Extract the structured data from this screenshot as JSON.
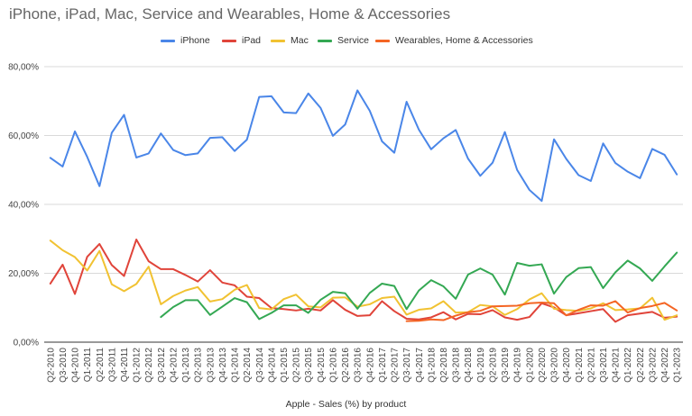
{
  "chart_data": {
    "type": "line",
    "title": "iPhone, iPad, Mac, Service and Wearables, Home & Accessories",
    "xlabel": "Apple - Sales (%) by product",
    "ylabel": "",
    "ylim": [
      0,
      80
    ],
    "yticks": [
      "0,00%",
      "20,00%",
      "40,00%",
      "60,00%",
      "80,00%"
    ],
    "grid": "horizontal",
    "legend_position": "top",
    "categories": [
      "Q2-2010",
      "Q3-2010",
      "Q4-2010",
      "Q1-2011",
      "Q2-2011",
      "Q3-2011",
      "Q4-2011",
      "Q1-2012",
      "Q2-2012",
      "Q3-2012",
      "Q4-2012",
      "Q1-2013",
      "Q2-2013",
      "Q3-2013",
      "Q4-2013",
      "Q1-2014",
      "Q2-2014",
      "Q3-2014",
      "Q4-2014",
      "Q1-2015",
      "Q2-2015",
      "Q3-2015",
      "Q4-2015",
      "Q1-2016",
      "Q2-2016",
      "Q3-2016",
      "Q4-2016",
      "Q1-2017",
      "Q2-2017",
      "Q3-2017",
      "Q4-2017",
      "Q1-2018",
      "Q2-2018",
      "Q3-2018",
      "Q4-2018",
      "Q1-2019",
      "Q2-2019",
      "Q3-2019",
      "Q4-2019",
      "Q1-2020",
      "Q2-2020",
      "Q3-2020",
      "Q4-2020",
      "Q1-2021",
      "Q2-2021",
      "Q3-2021",
      "Q4-2021",
      "Q1-2022",
      "Q2-2022",
      "Q3-2022",
      "Q4-2022",
      "Q1-2023"
    ],
    "series": [
      {
        "name": "iPhone",
        "color": "#4a86e8",
        "values": [
          53.5,
          51,
          61.2,
          53.8,
          45.3,
          60.8,
          66,
          53.6,
          54.8,
          60.6,
          55.8,
          54.3,
          54.8,
          59.3,
          59.5,
          55.5,
          58.8,
          71.2,
          71.4,
          66.7,
          66.5,
          72.2,
          68,
          59.9,
          63.2,
          73.1,
          67.2,
          58.3,
          55,
          69.8,
          61.7,
          56,
          59.2,
          61.6,
          53.3,
          48.3,
          52.1,
          61,
          50,
          44.2,
          41,
          58.9,
          53.2,
          48.5,
          46.8,
          57.7,
          52,
          49.5,
          47.6,
          56.1,
          54.4,
          48.7
        ]
      },
      {
        "name": "iPad",
        "color": "#e0443a",
        "values": [
          17,
          22.5,
          14,
          24.8,
          28.5,
          22.4,
          19.2,
          29.8,
          23.5,
          21.2,
          21.2,
          19.5,
          17.6,
          20.9,
          17.3,
          16.5,
          13.2,
          12.8,
          9.9,
          9.6,
          9.2,
          9.7,
          9.2,
          12.2,
          9.4,
          7.6,
          7.8,
          11.9,
          9,
          6.8,
          6.6,
          7.2,
          8.7,
          6.6,
          8.2,
          8.1,
          9.3,
          7.2,
          6.5,
          7.3,
          11.3,
          10.1,
          7.8,
          8.4,
          9,
          9.6,
          5.9,
          7.8,
          8.3,
          8.8,
          7.1,
          7.4
        ]
      },
      {
        "name": "Mac",
        "color": "#f1c232",
        "values": [
          29.5,
          26.7,
          24.7,
          20.8,
          26.5,
          16.8,
          14.8,
          16.9,
          21.9,
          11,
          13.4,
          15,
          16,
          11.8,
          12.5,
          15.2,
          16.6,
          9.9,
          9.5,
          12.5,
          13.8,
          10.4,
          10.1,
          12.9,
          13,
          10.3,
          11,
          12.8,
          13.2,
          8,
          9.4,
          9.8,
          11.9,
          8.6,
          8.7,
          10.8,
          10.4,
          7.9,
          9.6,
          12.4,
          14.2,
          9.7,
          9.3,
          9.1,
          9.8,
          11.3,
          9.3,
          9.5,
          9.8,
          12.9,
          6.5,
          7.8
        ]
      },
      {
        "name": "Service",
        "color": "#34a853",
        "values": [
          null,
          null,
          null,
          null,
          null,
          null,
          null,
          null,
          null,
          7.3,
          10.2,
          12.2,
          12.2,
          7.9,
          10.3,
          12.8,
          11.6,
          6.7,
          8.5,
          10.7,
          10.7,
          8.5,
          12.3,
          14.6,
          14.2,
          9.7,
          14.3,
          17,
          16.3,
          9.6,
          15,
          18,
          16.2,
          12.6,
          19.6,
          21.4,
          19.6,
          13.8,
          23,
          22.2,
          22.6,
          14.1,
          18.9,
          21.5,
          21.8,
          15.7,
          20.3,
          23.7,
          21.4,
          17.8,
          22,
          26
        ]
      },
      {
        "name": "Wearables, Home & Accessories",
        "color": "#f46524",
        "values": [
          null,
          null,
          null,
          null,
          null,
          null,
          null,
          null,
          null,
          null,
          null,
          null,
          null,
          null,
          null,
          null,
          null,
          null,
          null,
          null,
          null,
          null,
          null,
          null,
          null,
          null,
          null,
          null,
          null,
          6.1,
          6.2,
          6.6,
          6.4,
          7.7,
          8.7,
          9.1,
          10.4,
          10.5,
          10.6,
          11.3,
          11.5,
          11.3,
          7.8,
          9.4,
          10.7,
          10.6,
          11.9,
          8.6,
          9.9,
          10.5,
          11.4,
          9.2
        ]
      }
    ]
  }
}
